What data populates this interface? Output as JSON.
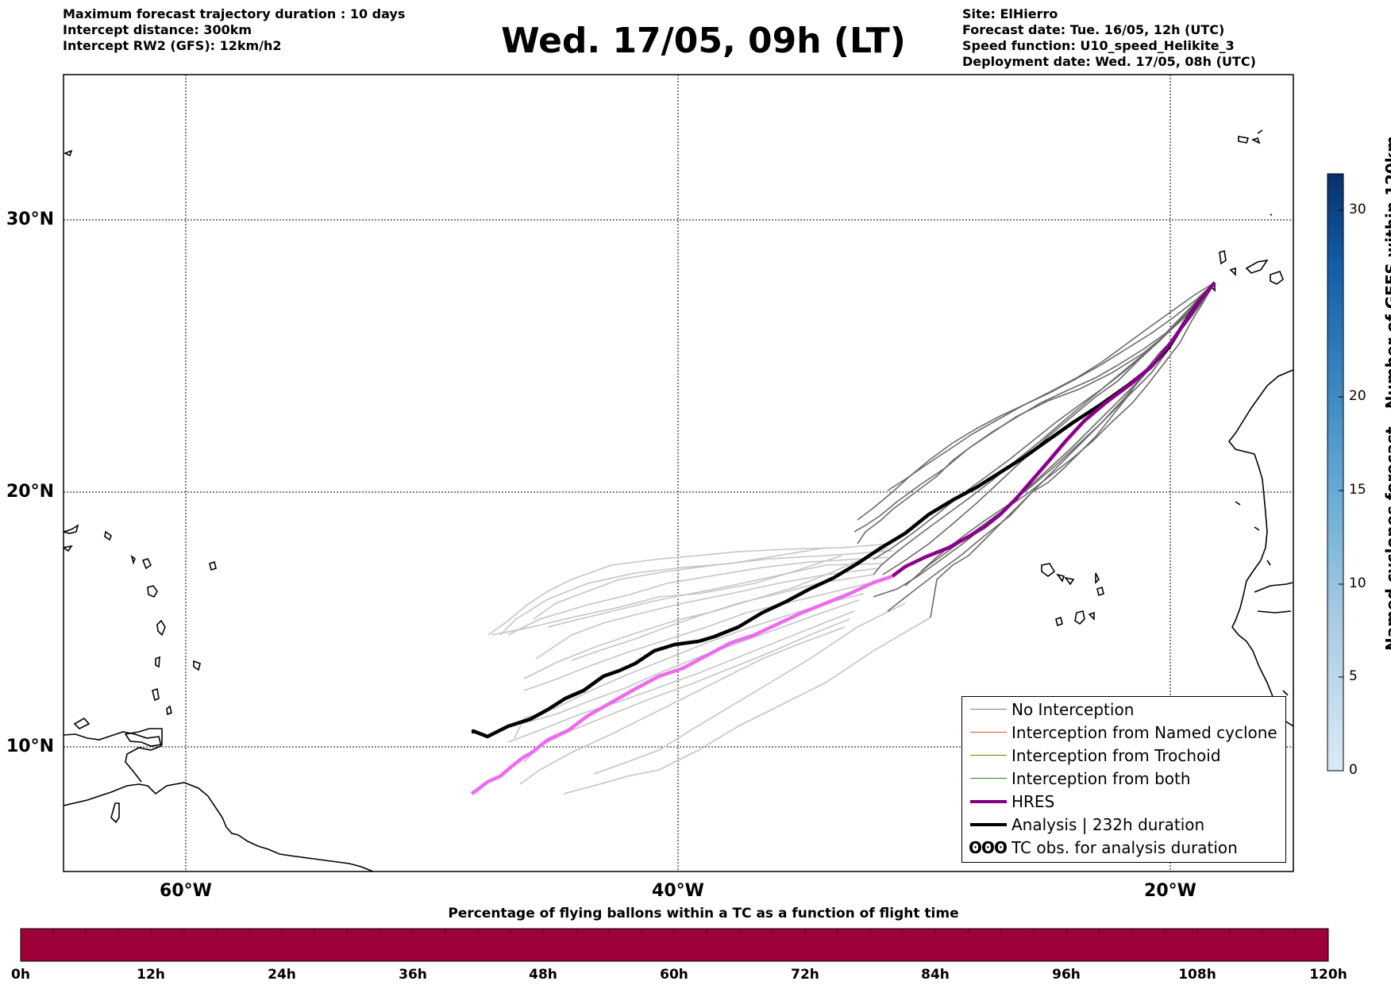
{
  "info_left": [
    "Maximum forecast trajectory duration : 10 days",
    "Intercept distance: 300km",
    "Intercept RW2 (GFS):  12km/h2"
  ],
  "title": "Wed. 17/05, 09h (LT)",
  "info_right": [
    "Site: ElHierro",
    "Forecast date: Tue. 16/05, 12h (UTC)",
    "Speed function: U10_speed_Helikite_3",
    "Deployment date: Wed. 17/05, 08h (UTC)"
  ],
  "map": {
    "lon_range": [
      -65,
      -15
    ],
    "lat_range": [
      5.5,
      34.8
    ],
    "lat_labels": [
      "30°N",
      "20°N",
      "10°N"
    ],
    "lon_labels": [
      "60°W",
      "40°W",
      "20°W"
    ],
    "gridlines": "dotted",
    "site": {
      "name": "ElHierro",
      "lon": -18,
      "lat": 27.7
    }
  },
  "legend": {
    "position": "lower-right",
    "items": [
      {
        "label": "No Interception",
        "color": "#808080",
        "style": "line-thin"
      },
      {
        "label": "Interception from Named cyclone",
        "color": "#e8561e",
        "style": "line-thin"
      },
      {
        "label": "Interception from Trochoid",
        "color": "#808000",
        "style": "line-thin"
      },
      {
        "label": "Interception from both",
        "color": "#1f8b1f",
        "style": "line-thin"
      },
      {
        "label": "HRES",
        "color": "#800080",
        "style": "line-thick"
      },
      {
        "label": "Analysis | 232h duration",
        "color": "#000000",
        "style": "line-thick"
      },
      {
        "label": "TC obs. for analysis duration",
        "color": "#000000",
        "style": "cyclone-symbols"
      }
    ]
  },
  "trajectories": {
    "analysis": [
      [
        -18,
        27.7
      ],
      [
        -20,
        25.3
      ],
      [
        -23,
        22.4
      ],
      [
        -26,
        20.6
      ],
      [
        -28,
        19.4
      ],
      [
        -30,
        18.3
      ],
      [
        -33,
        16.7
      ],
      [
        -36,
        15.6
      ],
      [
        -38,
        14.7
      ],
      [
        -40,
        14.2
      ],
      [
        -42,
        13.2
      ],
      [
        -44,
        12.3
      ],
      [
        -46,
        11.7
      ],
      [
        -48.5,
        10.6
      ]
    ],
    "hres_dark": [
      [
        -18,
        27.7
      ],
      [
        -20,
        25.3
      ],
      [
        -23,
        22.1
      ],
      [
        -25,
        20.5
      ],
      [
        -27,
        18.8
      ],
      [
        -29,
        17.9
      ],
      [
        -31.4,
        16.7
      ]
    ],
    "hres_light": [
      [
        -31.4,
        16.7
      ],
      [
        -34,
        15.8
      ],
      [
        -37,
        14.5
      ],
      [
        -40,
        13.0
      ],
      [
        -42,
        12.0
      ],
      [
        -44.3,
        11.0
      ]
    ],
    "ensemble_note": "grey ensemble trajectories; lighter grey where they extend beyond the flight-time window"
  },
  "colorbar_vertical": {
    "label": "Named cyclones forecast - Number of GEFS within 120km",
    "ticks": [
      "0",
      "5",
      "10",
      "15",
      "20",
      "30"
    ],
    "range": [
      0,
      32
    ],
    "colormap": "Blues"
  },
  "colorbar_horizontal": {
    "title": "Percentage of flying ballons within a TC as a function of flight time",
    "ticks": [
      "0h",
      "12h",
      "24h",
      "36h",
      "48h",
      "60h",
      "72h",
      "84h",
      "96h",
      "108h",
      "120h"
    ],
    "fill_color": "#9e003a"
  }
}
